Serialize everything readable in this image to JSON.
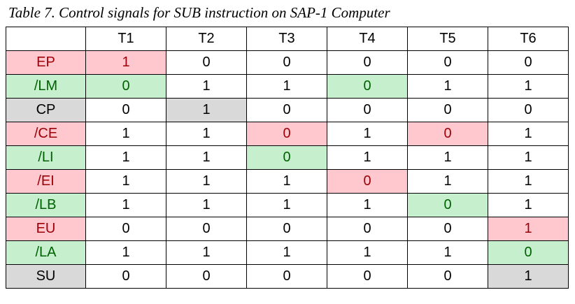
{
  "caption": "Table 7. Control signals for SUB instruction on SAP-1 Computer",
  "headers": [
    "",
    "T1",
    "T2",
    "T3",
    "T4",
    "T5",
    "T6"
  ],
  "rows": [
    {
      "signal": "EP",
      "values": [
        "1",
        "0",
        "0",
        "0",
        "0",
        "0"
      ]
    },
    {
      "signal": "/LM",
      "values": [
        "0",
        "1",
        "1",
        "0",
        "1",
        "1"
      ]
    },
    {
      "signal": "CP",
      "values": [
        "0",
        "1",
        "0",
        "0",
        "0",
        "0"
      ]
    },
    {
      "signal": "/CE",
      "values": [
        "1",
        "1",
        "0",
        "1",
        "0",
        "1"
      ]
    },
    {
      "signal": "/LI",
      "values": [
        "1",
        "1",
        "0",
        "1",
        "1",
        "1"
      ]
    },
    {
      "signal": "/EI",
      "values": [
        "1",
        "1",
        "1",
        "0",
        "1",
        "1"
      ]
    },
    {
      "signal": "/LB",
      "values": [
        "1",
        "1",
        "1",
        "1",
        "0",
        "1"
      ]
    },
    {
      "signal": "EU",
      "values": [
        "0",
        "0",
        "0",
        "0",
        "0",
        "1"
      ]
    },
    {
      "signal": "/LA",
      "values": [
        "1",
        "1",
        "1",
        "1",
        "1",
        "0"
      ]
    },
    {
      "signal": "SU",
      "values": [
        "0",
        "0",
        "0",
        "0",
        "0",
        "1"
      ]
    }
  ],
  "colors": {
    "red_fill": "#ffc7ce",
    "red_text": "#9c0006",
    "green_fill": "#c6efce",
    "green_text": "#006100",
    "gray_fill": "#d9d9d9"
  }
}
